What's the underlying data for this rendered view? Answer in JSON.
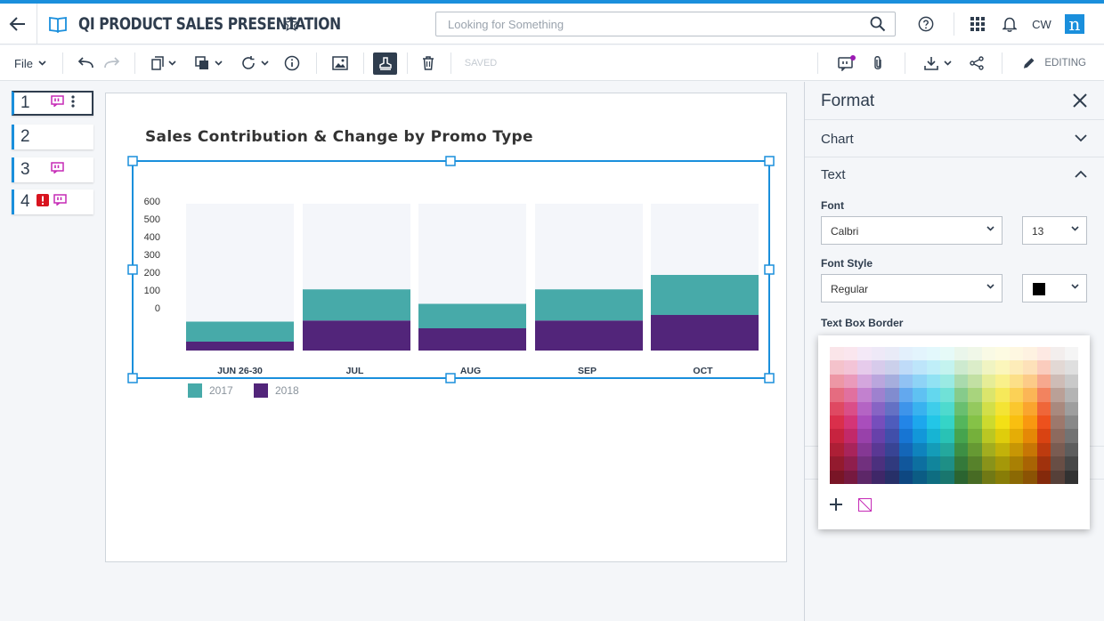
{
  "header": {
    "title": "QI PRODUCT SALES PRESENTATION",
    "search_placeholder": "Looking for Something",
    "user_initials": "CW",
    "brand_letter": "n"
  },
  "toolbar": {
    "file_label": "File",
    "saved_label": "SAVED",
    "editing_label": "EDITING"
  },
  "slides": [
    {
      "number": "1",
      "comment": true,
      "alert": false
    },
    {
      "number": "2",
      "comment": false,
      "alert": false
    },
    {
      "number": "3",
      "comment": true,
      "alert": false
    },
    {
      "number": "4",
      "comment": true,
      "alert": true
    }
  ],
  "chart_data": {
    "type": "bar",
    "stacked": true,
    "title": "Sales Contribution & Change by Promo Type",
    "categories": [
      "JUN 26-30",
      "JUL",
      "AUG",
      "SEP",
      "OCT"
    ],
    "y_ticks": [
      "600",
      "500",
      "400",
      "300",
      "200",
      "100",
      "0"
    ],
    "ylim": [
      0,
      600
    ],
    "series": [
      {
        "name": "2017",
        "color": "#47aaa9",
        "values": [
          90,
          140,
          110,
          140,
          180
        ]
      },
      {
        "name": "2018",
        "color": "#52257a",
        "values": [
          40,
          135,
          100,
          135,
          160
        ]
      }
    ],
    "background_bar_color": "#f4f6fa",
    "legend_position": "bottom-left"
  },
  "format_panel": {
    "title": "Format",
    "sections": {
      "chart": "Chart",
      "text": "Text"
    },
    "font_label": "Font",
    "font_value": "Calbri",
    "size_value": "13",
    "font_style_label": "Font Style",
    "font_style_value": "Regular",
    "color_value": "#000000",
    "border_label": "Text Box Border"
  },
  "colors": {
    "accent": "#1a8fdc",
    "navy": "#2f3d4e",
    "comment": "#c52ab6",
    "alert": "#d8141f"
  }
}
